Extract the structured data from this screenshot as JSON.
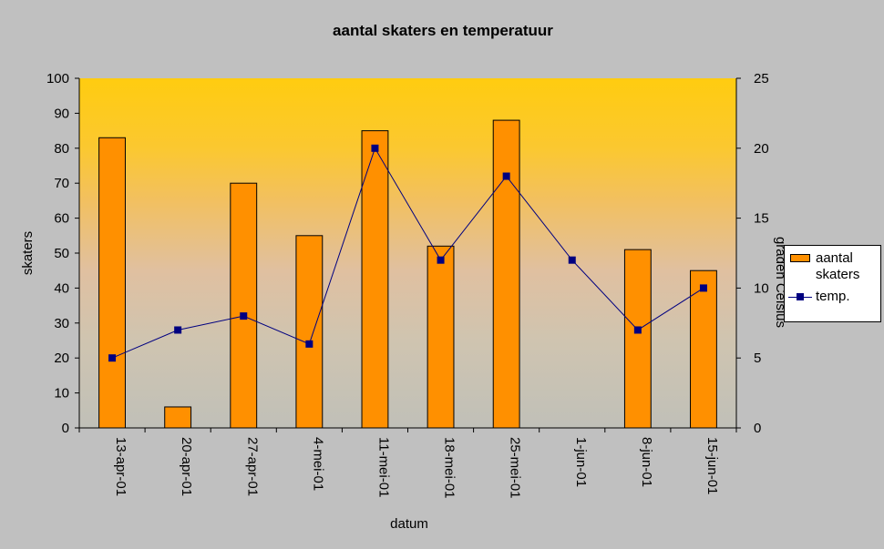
{
  "chart_data": {
    "type": "bar",
    "title": "aantal skaters en temperatuur",
    "xlabel": "datum",
    "ylabel": "skaters",
    "y2label": "graden Celsius",
    "categories": [
      "13-apr-01",
      "20-apr-01",
      "27-apr-01",
      "4-mei-01",
      "11-mei-01",
      "18-mei-01",
      "25-mei-01",
      "1-jun-01",
      "8-jun-01",
      "15-jun-01"
    ],
    "series": [
      {
        "name": "aantal skaters",
        "type": "bar",
        "axis": "left",
        "values": [
          83,
          6,
          70,
          55,
          85,
          52,
          88,
          0,
          51,
          45
        ]
      },
      {
        "name": "temp.",
        "type": "line",
        "axis": "right",
        "values": [
          5,
          7,
          8,
          6,
          20,
          12,
          18,
          12,
          7,
          10
        ]
      }
    ],
    "ylim": [
      0,
      100
    ],
    "yticks": [
      "0",
      "10",
      "20",
      "30",
      "40",
      "50",
      "60",
      "70",
      "80",
      "90",
      "100"
    ],
    "y2lim": [
      0,
      25
    ],
    "y2ticks": [
      "0",
      "5",
      "10",
      "15",
      "20",
      "25"
    ],
    "grid": false,
    "legend": "right",
    "colors": {
      "bar": "#ff9000",
      "line": "#000080",
      "plot_top": "#ffcc00",
      "plot_bottom": "#c0c0c0",
      "background": "#c0c0c0"
    }
  },
  "legend": {
    "bar_label_line1": "aantal",
    "bar_label_line2": "skaters",
    "line_label": "temp."
  }
}
